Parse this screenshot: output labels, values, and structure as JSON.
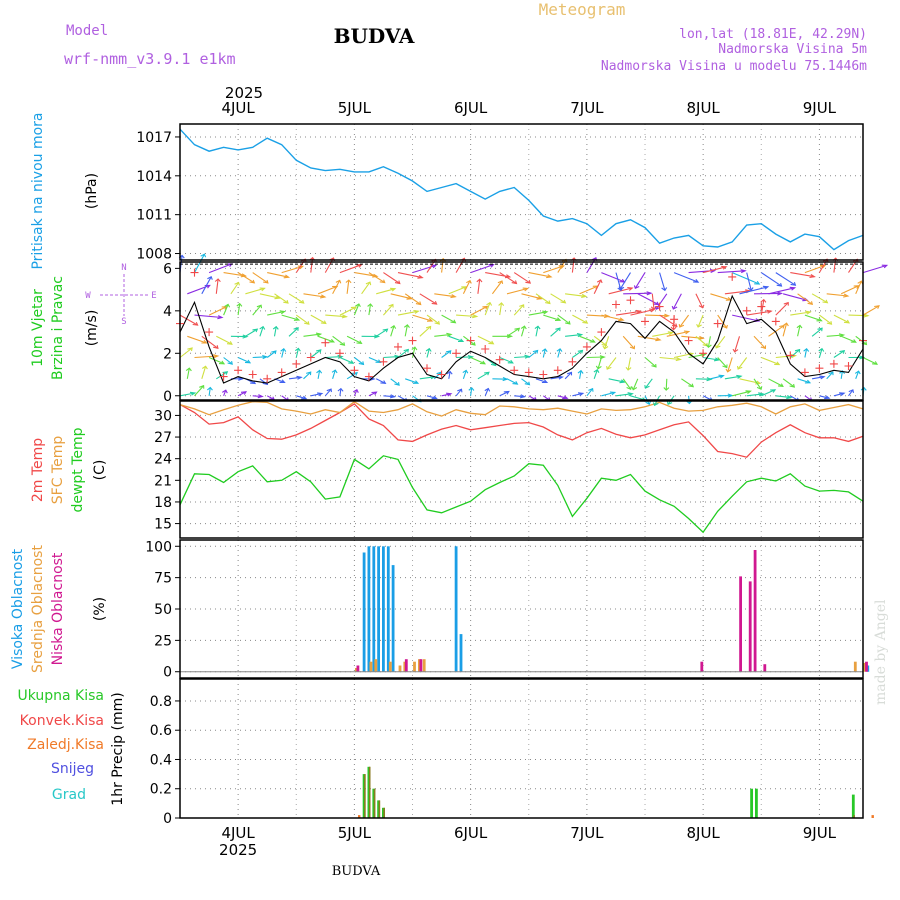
{
  "header": {
    "model_label": "Model",
    "model_name": "wrf-nmm_v3.9.1  e1km",
    "station_title": "BUDVA",
    "product": "Meteogram",
    "lonlat": "lon,lat (18.81E, 42.29N)",
    "elevation": "Nadmorska Visina 5m",
    "model_elevation": "Nadmorska Visina u modelu 75.1446m",
    "footer_title": "BUDVA",
    "watermark": "made by Angel"
  },
  "colors": {
    "pressure": "#1aa0e6",
    "temp2m": "#f04848",
    "sfc_temp": "#e8a040",
    "dewpoint": "#20cc20",
    "high_cloud": "#1a9ee6",
    "mid_cloud": "#e8a040",
    "low_cloud": "#d01890",
    "total_precip": "#28c828",
    "conv_precip": "#f04848",
    "frozen_precip": "#f07a28",
    "snow": "#5050e0",
    "hail": "#28c8c8",
    "wind_speed": "#000000",
    "gust": "#f04848",
    "model_text": "#b060e0",
    "meteogram_text": "#e8c070"
  },
  "time_axis": {
    "year": "2025",
    "days": [
      "4JUL",
      "5JUL",
      "6JUL",
      "7JUL",
      "8JUL",
      "9JUL"
    ],
    "start_hour": -12,
    "end_hour": 129
  },
  "panels": {
    "pressure": {
      "label": "Pritisak na nivou mora",
      "unit": "(hPa)",
      "ticks": [
        "1008",
        "1011",
        "1014",
        "1017"
      ]
    },
    "wind": {
      "label_line1": "10m  Vjetar",
      "label_line2": "Brzina i Pravac",
      "unit": "(m/s)",
      "compass_n": "N",
      "compass_s": "S",
      "compass_w": "W",
      "compass_e": "E",
      "ticks": [
        "0",
        "2",
        "4",
        "6"
      ]
    },
    "temperature": {
      "label_2m": "2m Temp",
      "label_sfc": "SFC Temp",
      "label_dew": "dewpt Temp",
      "unit": "(C)",
      "ticks": [
        "15",
        "18",
        "21",
        "24",
        "27",
        "30"
      ]
    },
    "cloud": {
      "label_high": "Visoka Oblacnost",
      "label_mid": "Srednja Oblacnost",
      "label_low": "Niska  Oblacnost",
      "unit": "(%)",
      "ticks": [
        "0",
        "25",
        "50",
        "75",
        "100"
      ]
    },
    "precip": {
      "label_total": "Ukupna  Kisa",
      "label_conv": "Konvek.Kisa",
      "label_frozen": "Zaledj.Kisa",
      "label_snow": "Snijeg",
      "label_hail": "Grad",
      "unit": "1hr Precip (mm)",
      "ticks": [
        "0",
        "0.2",
        "0.4",
        "0.6",
        "0.8"
      ]
    }
  },
  "chart_data": [
    {
      "type": "line",
      "name": "pressure",
      "x_unit": "hours from 2025-07-04 00:00",
      "ylim": [
        1007.5,
        1018
      ],
      "x": [
        -12,
        -9,
        -6,
        -3,
        0,
        3,
        6,
        9,
        12,
        15,
        18,
        21,
        24,
        27,
        30,
        33,
        36,
        39,
        42,
        45,
        48,
        51,
        54,
        57,
        60,
        63,
        66,
        69,
        72,
        75,
        78,
        81,
        84,
        87,
        90,
        93,
        96,
        99,
        102,
        105,
        108,
        111,
        114,
        117,
        120,
        123,
        126,
        129
      ],
      "y": [
        1017.6,
        1016.4,
        1015.9,
        1016.2,
        1016.0,
        1016.2,
        1016.9,
        1016.4,
        1015.2,
        1014.6,
        1014.4,
        1014.5,
        1014.3,
        1014.3,
        1014.7,
        1014.2,
        1013.6,
        1012.8,
        1013.1,
        1013.4,
        1012.8,
        1012.2,
        1012.8,
        1013.1,
        1012.1,
        1010.9,
        1010.5,
        1010.7,
        1010.3,
        1009.4,
        1010.3,
        1010.6,
        1010.0,
        1008.8,
        1009.2,
        1009.4,
        1008.6,
        1008.5,
        1008.9,
        1010.2,
        1010.3,
        1009.5,
        1008.9,
        1009.5,
        1009.3,
        1008.3,
        1009.0,
        1009.4
      ]
    },
    {
      "type": "line",
      "name": "wind",
      "x_unit": "hours from 2025-07-04 00:00",
      "ylim": [
        -0.2,
        6.3
      ],
      "x": [
        -12,
        -9,
        -6,
        -3,
        0,
        3,
        6,
        9,
        12,
        15,
        18,
        21,
        24,
        27,
        30,
        33,
        36,
        39,
        42,
        45,
        48,
        51,
        54,
        57,
        60,
        63,
        66,
        69,
        72,
        75,
        78,
        81,
        84,
        87,
        90,
        93,
        96,
        99,
        102,
        105,
        108,
        111,
        114,
        117,
        120,
        123,
        126,
        129
      ],
      "series": [
        {
          "name": "speed",
          "values": [
            3.0,
            4.4,
            2.3,
            0.6,
            0.9,
            0.7,
            0.6,
            0.9,
            1.2,
            1.5,
            1.8,
            1.6,
            0.9,
            0.7,
            1.3,
            1.8,
            2.0,
            1.0,
            0.8,
            1.6,
            2.1,
            1.8,
            1.4,
            1.0,
            0.9,
            0.8,
            0.9,
            1.3,
            2.0,
            2.6,
            3.5,
            3.4,
            2.7,
            3.5,
            3.0,
            2.0,
            1.5,
            2.6,
            4.7,
            3.4,
            3.6,
            3.0,
            1.5,
            0.9,
            1.0,
            1.2,
            1.1,
            2.2
          ]
        },
        {
          "name": "gust",
          "values": [
            3.4,
            5.8,
            3.0,
            0.9,
            1.2,
            1.0,
            0.8,
            1.1,
            1.5,
            1.8,
            2.5,
            2.0,
            1.2,
            0.9,
            1.6,
            2.3,
            2.6,
            1.3,
            1.0,
            2.0,
            2.6,
            2.2,
            1.7,
            1.2,
            1.1,
            1.0,
            1.2,
            1.6,
            2.3,
            3.0,
            4.3,
            4.5,
            3.5,
            4.2,
            3.6,
            2.6,
            2.0,
            3.4,
            5.6,
            4.0,
            4.2,
            3.5,
            1.9,
            1.1,
            1.3,
            1.5,
            1.4,
            2.6
          ]
        }
      ]
    },
    {
      "type": "line",
      "name": "temperature",
      "x_unit": "hours from 2025-07-04 00:00",
      "ylim": [
        13,
        32
      ],
      "x": [
        -12,
        -9,
        -6,
        -3,
        0,
        3,
        6,
        9,
        12,
        15,
        18,
        21,
        24,
        27,
        30,
        33,
        36,
        39,
        42,
        45,
        48,
        51,
        54,
        57,
        60,
        63,
        66,
        69,
        72,
        75,
        78,
        81,
        84,
        87,
        90,
        93,
        96,
        99,
        102,
        105,
        108,
        111,
        114,
        117,
        120,
        123,
        126,
        129
      ],
      "series": [
        {
          "name": "2m",
          "values": [
            31.5,
            30.4,
            28.8,
            29.0,
            29.8,
            28.0,
            26.8,
            26.7,
            27.3,
            28.2,
            29.3,
            30.4,
            31.6,
            29.5,
            28.6,
            26.6,
            26.4,
            27.3,
            28.1,
            28.6,
            28.0,
            28.3,
            28.6,
            28.9,
            29.0,
            28.4,
            27.3,
            26.6,
            27.6,
            28.2,
            27.4,
            26.9,
            27.3,
            28.0,
            28.7,
            29.1,
            27.2,
            25.0,
            24.7,
            24.2,
            26.3,
            27.6,
            28.7,
            27.6,
            26.9,
            26.9,
            26.4,
            27.1
          ]
        },
        {
          "name": "sfc",
          "values": [
            31.5,
            30.9,
            30.1,
            30.8,
            31.4,
            31.9,
            31.8,
            30.9,
            30.6,
            30.2,
            30.8,
            30.4,
            31.9,
            30.6,
            30.4,
            30.8,
            31.6,
            30.5,
            29.9,
            30.8,
            30.3,
            30.1,
            31.3,
            31.2,
            30.9,
            30.8,
            31.0,
            30.6,
            30.2,
            30.9,
            30.7,
            30.8,
            31.2,
            31.8,
            31.0,
            30.6,
            30.7,
            31.2,
            31.4,
            31.7,
            31.2,
            30.2,
            31.2,
            31.6,
            30.7,
            31.1,
            31.5,
            30.9
          ]
        },
        {
          "name": "dewpt",
          "values": [
            17.6,
            21.9,
            21.8,
            20.7,
            22.2,
            23.0,
            20.8,
            21.0,
            22.2,
            20.8,
            18.4,
            18.7,
            23.9,
            22.6,
            24.4,
            23.9,
            20.0,
            16.9,
            16.5,
            17.3,
            18.1,
            19.7,
            20.7,
            21.6,
            23.3,
            23.1,
            20.3,
            16.0,
            18.5,
            21.3,
            21.0,
            21.8,
            19.5,
            18.3,
            17.4,
            15.7,
            13.8,
            16.7,
            18.8,
            20.8,
            21.3,
            20.9,
            21.9,
            20.2,
            19.5,
            19.6,
            19.4,
            18.1
          ]
        }
      ]
    },
    {
      "type": "bar",
      "name": "cloud",
      "x_unit": "hours from 2025-07-04 00:00",
      "ylim": [
        -5,
        105
      ],
      "high": [
        {
          "x": 26,
          "v": 95
        },
        {
          "x": 27,
          "v": 100
        },
        {
          "x": 28,
          "v": 100
        },
        {
          "x": 29,
          "v": 100
        },
        {
          "x": 30,
          "v": 100
        },
        {
          "x": 31,
          "v": 100
        },
        {
          "x": 32,
          "v": 85
        },
        {
          "x": 45,
          "v": 100
        },
        {
          "x": 46,
          "v": 30
        },
        {
          "x": 130,
          "v": 5
        }
      ],
      "mid": [
        {
          "x": 24,
          "v": 3
        },
        {
          "x": 27,
          "v": 8
        },
        {
          "x": 28,
          "v": 10
        },
        {
          "x": 31,
          "v": 8
        },
        {
          "x": 33,
          "v": 5
        },
        {
          "x": 34,
          "v": 8
        },
        {
          "x": 36,
          "v": 8
        },
        {
          "x": 37,
          "v": 10
        },
        {
          "x": 38,
          "v": 10
        },
        {
          "x": 127,
          "v": 8
        },
        {
          "x": 129,
          "v": 7
        }
      ],
      "low": [
        {
          "x": 24,
          "v": 5
        },
        {
          "x": 34,
          "v": 10
        },
        {
          "x": 37,
          "v": 10
        },
        {
          "x": 95,
          "v": 8
        },
        {
          "x": 103,
          "v": 76
        },
        {
          "x": 105,
          "v": 72
        },
        {
          "x": 106,
          "v": 97
        },
        {
          "x": 108,
          "v": 6
        },
        {
          "x": 129,
          "v": 8
        }
      ]
    },
    {
      "type": "bar",
      "name": "precip",
      "x_unit": "hours from 2025-07-04 00:00",
      "ylim": [
        0,
        0.95
      ],
      "total": [
        {
          "x": 26,
          "v": 0.3
        },
        {
          "x": 27,
          "v": 0.35
        },
        {
          "x": 28,
          "v": 0.2
        },
        {
          "x": 29,
          "v": 0.12
        },
        {
          "x": 30,
          "v": 0.07
        },
        {
          "x": 106,
          "v": 0.2
        },
        {
          "x": 107,
          "v": 0.2
        },
        {
          "x": 127,
          "v": 0.16
        }
      ],
      "conv": [
        {
          "x": 26,
          "v": 0.3
        },
        {
          "x": 27,
          "v": 0.35
        },
        {
          "x": 28,
          "v": 0.2
        },
        {
          "x": 29,
          "v": 0.12
        },
        {
          "x": 30,
          "v": 0.07
        },
        {
          "x": 127,
          "v": 0.02
        }
      ],
      "frozen": [
        {
          "x": 25,
          "v": 0.02
        },
        {
          "x": 131,
          "v": 0.02
        }
      ]
    }
  ]
}
